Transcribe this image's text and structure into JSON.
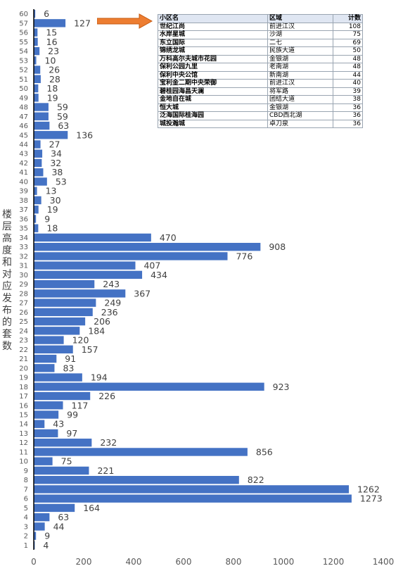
{
  "chart_data": {
    "type": "bar",
    "orientation": "horizontal",
    "ylabel": "楼层高度和对应发布的套数",
    "xlim": [
      0,
      1400
    ],
    "xticks": [
      0,
      200,
      400,
      600,
      800,
      1000,
      1200,
      1400
    ],
    "bar_color": "#4472c4",
    "grid": false,
    "categories": [
      "1",
      "2",
      "3",
      "4",
      "5",
      "6",
      "7",
      "8",
      "9",
      "10",
      "11",
      "12",
      "13",
      "14",
      "15",
      "16",
      "17",
      "18",
      "19",
      "20",
      "21",
      "22",
      "23",
      "24",
      "25",
      "26",
      "27",
      "28",
      "29",
      "30",
      "31",
      "32",
      "33",
      "34",
      "35",
      "36",
      "37",
      "38",
      "39",
      "40",
      "41",
      "42",
      "43",
      "44",
      "45",
      "46",
      "47",
      "48",
      "49",
      "50",
      "51",
      "52",
      "53",
      "54",
      "55",
      "56",
      "57",
      "60"
    ],
    "values": [
      4,
      9,
      44,
      63,
      164,
      1273,
      1262,
      822,
      221,
      75,
      856,
      232,
      97,
      43,
      99,
      117,
      226,
      923,
      194,
      83,
      91,
      157,
      120,
      184,
      206,
      236,
      249,
      367,
      243,
      434,
      407,
      776,
      908,
      470,
      18,
      9,
      19,
      30,
      13,
      53,
      38,
      32,
      34,
      27,
      136,
      63,
      59,
      59,
      19,
      18,
      28,
      26,
      10,
      23,
      16,
      15,
      127,
      6
    ]
  },
  "table": {
    "headers": [
      "小区名",
      "区域",
      "计数"
    ],
    "rows": [
      [
        "世纪江尚",
        "前进江汉",
        "108"
      ],
      [
        "水岸星城",
        "沙湖",
        "75"
      ],
      [
        "东立国际",
        "二七",
        "69"
      ],
      [
        "锦绣龙城",
        "民族大道",
        "50"
      ],
      [
        "万科高尔夫城市花园",
        "金银湖",
        "48"
      ],
      [
        "保利公园九里",
        "老南湖",
        "48"
      ],
      [
        "保利中央公馆",
        "新南湖",
        "44"
      ],
      [
        "宝利金二期中央荣御",
        "前进江汉",
        "40"
      ],
      [
        "碧桂园海昌天澜",
        "将军路",
        "39"
      ],
      [
        "金地自在城",
        "团结大道",
        "38"
      ],
      [
        "恒大城",
        "金银湖",
        "36"
      ],
      [
        "泛海国际桂海园",
        "CBD西北湖",
        "36"
      ],
      [
        "城投瀚城",
        "卓刀泉",
        "36"
      ]
    ]
  },
  "arrow_color": "#ed7d31"
}
